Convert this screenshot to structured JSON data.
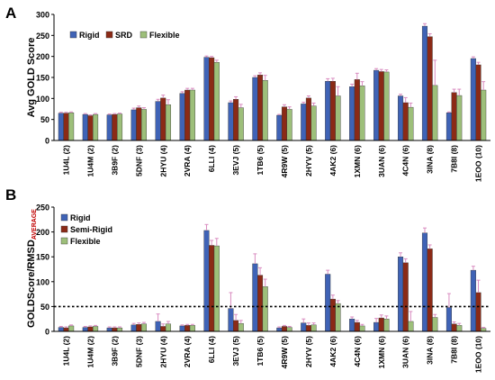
{
  "colors": {
    "rigid": "#3f63b6",
    "mid": "#8b2a16",
    "flexible": "#9dbf7a",
    "error": "#d98cc0"
  },
  "chart_data": [
    {
      "type": "bar",
      "panel_label": "A",
      "title": "",
      "xlabel": "",
      "ylabel": "Avg GOLD Score",
      "ylim": [
        0,
        300
      ],
      "yticks": [
        0,
        50,
        100,
        150,
        200,
        250,
        300
      ],
      "grid": false,
      "legend_position": "top-left",
      "categories": [
        "1U4L (2)",
        "1U4M (2)",
        "3B9F (2)",
        "5DNF (3)",
        "2HYU (4)",
        "2VRA (4)",
        "6LLI (4)",
        "3EVJ (5)",
        "1TB6 (5)",
        "4R9W (5)",
        "2HYV (5)",
        "4AK2 (6)",
        "1XMN (6)",
        "3UAN (6)",
        "4C4N (6)",
        "3INA (8)",
        "7B8I (8)",
        "1EOO (10)"
      ],
      "series": [
        {
          "name": "Rigid",
          "values": [
            65,
            62,
            61,
            73,
            93,
            112,
            198,
            90,
            150,
            60,
            87,
            141,
            128,
            167,
            106,
            272,
            66,
            195
          ]
        },
        {
          "name": "SRD",
          "values": [
            65,
            59,
            62,
            78,
            101,
            120,
            197,
            98,
            156,
            80,
            101,
            141,
            145,
            164,
            90,
            247,
            114,
            180
          ]
        },
        {
          "name": "Flexible",
          "values": [
            66,
            62,
            63,
            74,
            85,
            120,
            186,
            78,
            143,
            74,
            82,
            106,
            130,
            163,
            79,
            131,
            107,
            120
          ]
        }
      ],
      "errors": [
        [
          2,
          2,
          2,
          4,
          5,
          4,
          3,
          4,
          4,
          2,
          4,
          6,
          6,
          4,
          4,
          6,
          2,
          4
        ],
        [
          2,
          2,
          2,
          4,
          7,
          4,
          3,
          6,
          5,
          5,
          5,
          7,
          15,
          5,
          12,
          7,
          8,
          6
        ],
        [
          2,
          2,
          2,
          4,
          12,
          4,
          5,
          8,
          12,
          6,
          7,
          22,
          10,
          5,
          10,
          60,
          15,
          20
        ]
      ]
    },
    {
      "type": "bar",
      "panel_label": "B",
      "title": "",
      "xlabel": "",
      "ylabel_main": "GOLDScore/RMSD",
      "ylabel_sub": "AVERAGE",
      "ylim": [
        0,
        250
      ],
      "yticks": [
        0,
        50,
        100,
        150,
        200,
        250
      ],
      "reference_line": 50,
      "grid": false,
      "legend_position": "top-left",
      "categories": [
        "1U4L (2)",
        "1U4M (2)",
        "3B9F (2)",
        "5DNF (3)",
        "2HYU (4)",
        "2VRA (4)",
        "6LLI (4)",
        "3EVJ (5)",
        "1TB6 (5)",
        "4R9W (5)",
        "2HYV (5)",
        "4AK2 (6)",
        "4C4N (6)",
        "1XMN (6)",
        "3UAN (6)",
        "3INA (8)",
        "7B8I (8)",
        "1EOO (10)"
      ],
      "series": [
        {
          "name": "Rigid",
          "values": [
            8,
            8,
            7,
            13,
            20,
            11,
            203,
            46,
            136,
            7,
            17,
            115,
            25,
            18,
            150,
            198,
            48,
            123
          ]
        },
        {
          "name": "Semi-Rigid",
          "values": [
            7,
            9,
            7,
            14,
            10,
            12,
            173,
            22,
            113,
            10,
            12,
            65,
            18,
            27,
            138,
            166,
            15,
            78
          ]
        },
        {
          "name": "Flexible",
          "values": [
            11,
            10,
            7,
            15,
            15,
            12,
            172,
            16,
            90,
            8,
            13,
            56,
            11,
            25,
            20,
            28,
            12,
            6
          ]
        }
      ],
      "errors": [
        [
          2,
          2,
          2,
          3,
          15,
          2,
          12,
          32,
          20,
          2,
          8,
          8,
          4,
          8,
          8,
          10,
          28,
          8
        ],
        [
          2,
          2,
          2,
          3,
          5,
          2,
          10,
          12,
          15,
          2,
          5,
          8,
          4,
          6,
          8,
          8,
          4,
          25
        ],
        [
          2,
          2,
          2,
          3,
          5,
          2,
          15,
          6,
          15,
          2,
          4,
          6,
          3,
          6,
          20,
          6,
          4,
          2
        ]
      ]
    }
  ]
}
